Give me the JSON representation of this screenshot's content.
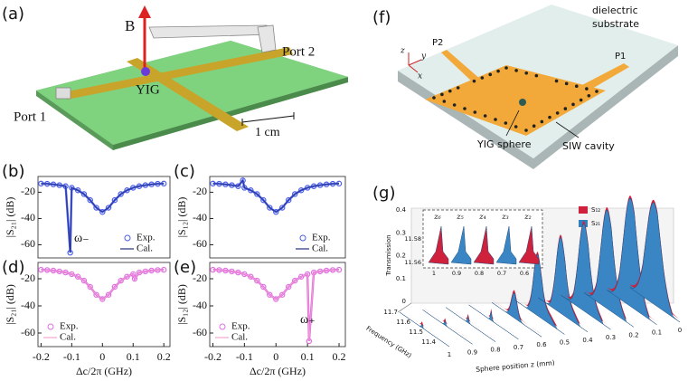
{
  "panel_labels": [
    "(a)",
    "(b)",
    "(c)",
    "(d)",
    "(e)",
    "(f)",
    "(g)"
  ],
  "a": {
    "field": "B",
    "port2": "Port 2",
    "yig": "YIG",
    "port1": "Port 1",
    "scale": "1 cm"
  },
  "f": {
    "substrate": [
      "dielectric",
      "substrate"
    ],
    "p2": "P2",
    "p1": "P1",
    "axes": [
      "z",
      "y",
      "x"
    ],
    "sphere": "YIG sphere",
    "cavity": "SIW cavity"
  },
  "g": {
    "yticks": [
      "0.4",
      "0.3",
      "0.2",
      "0.1",
      "0"
    ],
    "ylabel": "Transmission",
    "freq_label": "Frequency (GHz)",
    "freq_ticks": [
      "11.7",
      "11.6",
      "11.5",
      "11.4"
    ],
    "zlabel": "Sphere position z (mm)",
    "zticks": [
      "1",
      "0.9",
      "0.8",
      "0.7",
      "0.6",
      "0.5",
      "0.4",
      "0.3",
      "0.2",
      "0.1",
      "0"
    ],
    "legend": [
      "S₁₂",
      "S₂₁"
    ],
    "inset": {
      "yticks": [
        "11.58",
        "11.56"
      ],
      "xticks": [
        "1",
        "0.9",
        "0.8",
        "0.7",
        "0.6"
      ],
      "labels": [
        "z₆",
        "z₅",
        "z₄",
        "z₃",
        "z₂"
      ]
    }
  },
  "chart_data": [
    {
      "type": "line",
      "ylabel": "|S₂₁| (dB)",
      "annotation": "ω₋",
      "legend": "lower right",
      "x": [
        -0.2,
        -0.18,
        -0.16,
        -0.14,
        -0.12,
        -0.105,
        -0.1,
        -0.08,
        -0.06,
        -0.04,
        -0.02,
        0,
        0.02,
        0.04,
        0.06,
        0.08,
        0.1,
        0.12,
        0.14,
        0.16,
        0.18,
        0.2
      ],
      "series": [
        {
          "name": "Exp.",
          "color": "#4a5ee8",
          "values": [
            -13.4,
            -13.6,
            -14,
            -14.6,
            -15.4,
            -66,
            -16.6,
            -18.5,
            -21.4,
            -26,
            -31.8,
            -35,
            -31.8,
            -26,
            -21.4,
            -18.5,
            -16.6,
            -15.4,
            -14.6,
            -14,
            -13.6,
            -13.4
          ]
        },
        {
          "name": "Cal.",
          "color": "#25307a",
          "values": [
            -13.4,
            -13.6,
            -14,
            -14.6,
            -15.4,
            -66,
            -16.6,
            -18.5,
            -21.4,
            -26,
            -31.8,
            -35,
            -31.8,
            -26,
            -21.4,
            -18.5,
            -16.6,
            -15.4,
            -14.6,
            -14,
            -13.6,
            -13.4
          ]
        }
      ],
      "xlim": [
        -0.21,
        0.22
      ],
      "ylim": [
        -70,
        -8
      ],
      "yticks": [
        -20,
        -40,
        -60
      ]
    },
    {
      "type": "line",
      "ylabel": "|S₁₂| (dB)",
      "legend": "lower right",
      "x": [
        -0.2,
        -0.18,
        -0.16,
        -0.14,
        -0.12,
        -0.105,
        -0.1,
        -0.08,
        -0.06,
        -0.04,
        -0.02,
        0,
        0.02,
        0.04,
        0.06,
        0.08,
        0.1,
        0.12,
        0.14,
        0.16,
        0.18,
        0.2
      ],
      "series": [
        {
          "name": "Exp.",
          "color": "#4a5ee8",
          "values": [
            -13.4,
            -13.6,
            -14,
            -14.6,
            -15.4,
            -11,
            -16.6,
            -18.5,
            -21.4,
            -26,
            -31.8,
            -35,
            -31.8,
            -26,
            -21.4,
            -18.5,
            -16.6,
            -15.4,
            -14.6,
            -14,
            -13.6,
            -13.4
          ]
        },
        {
          "name": "Cal.",
          "color": "#25307a",
          "values": [
            -13.4,
            -13.6,
            -14,
            -14.6,
            -15.4,
            -11,
            -16.6,
            -18.5,
            -21.4,
            -26,
            -31.8,
            -35,
            -31.8,
            -26,
            -21.4,
            -18.5,
            -16.6,
            -15.4,
            -14.6,
            -14,
            -13.6,
            -13.4
          ]
        }
      ],
      "xlim": [
        -0.21,
        0.22
      ],
      "ylim": [
        -70,
        -8
      ],
      "yticks": [
        -20,
        -40,
        -60
      ]
    },
    {
      "type": "line",
      "ylabel": "|S₂₁| (dB)",
      "xlabel": "Δc/2π (GHz)",
      "legend": "lower left",
      "x": [
        -0.2,
        -0.18,
        -0.16,
        -0.14,
        -0.12,
        -0.1,
        -0.08,
        -0.06,
        -0.04,
        -0.02,
        0,
        0.02,
        0.04,
        0.06,
        0.08,
        0.1,
        0.105,
        0.12,
        0.14,
        0.16,
        0.18,
        0.2
      ],
      "series": [
        {
          "name": "Exp.",
          "color": "#e070e0",
          "values": [
            -13.4,
            -13.6,
            -14,
            -14.6,
            -15.4,
            -16.6,
            -18.5,
            -21.4,
            -26,
            -31.8,
            -35,
            -31.8,
            -26,
            -21.4,
            -18.5,
            -16.6,
            -20,
            -15.4,
            -14.6,
            -14,
            -13.6,
            -13.4
          ]
        },
        {
          "name": "Cal.",
          "color": "#f3a6cf",
          "values": [
            -13.4,
            -13.6,
            -14,
            -14.6,
            -15.4,
            -16.6,
            -18.5,
            -21.4,
            -26,
            -31.8,
            -35,
            -31.8,
            -26,
            -21.4,
            -18.5,
            -16.6,
            -20,
            -15.4,
            -14.6,
            -14,
            -13.6,
            -13.4
          ]
        }
      ],
      "xlim": [
        -0.21,
        0.22
      ],
      "ylim": [
        -70,
        -8
      ],
      "yticks": [
        -20,
        -40,
        -60
      ],
      "xticks": [
        -0.2,
        -0.1,
        0.0,
        0.1,
        0.2
      ]
    },
    {
      "type": "line",
      "ylabel": "|S₁₂| (dB)",
      "xlabel": "Δc/2π (GHz)",
      "annotation": "ω₊",
      "legend": "lower left",
      "x": [
        -0.2,
        -0.18,
        -0.16,
        -0.14,
        -0.12,
        -0.1,
        -0.08,
        -0.06,
        -0.04,
        -0.02,
        0,
        0.02,
        0.04,
        0.06,
        0.08,
        0.1,
        0.105,
        0.12,
        0.14,
        0.16,
        0.18,
        0.2
      ],
      "series": [
        {
          "name": "Exp.",
          "color": "#e070e0",
          "values": [
            -13.4,
            -13.6,
            -14,
            -14.6,
            -15.4,
            -16.6,
            -18.5,
            -21.4,
            -26,
            -31.8,
            -35,
            -31.8,
            -26,
            -21.4,
            -18.5,
            -16.6,
            -66,
            -15.4,
            -14.6,
            -14,
            -13.6,
            -13.4
          ]
        },
        {
          "name": "Cal.",
          "color": "#f3a6cf",
          "values": [
            -13.4,
            -13.6,
            -14,
            -14.6,
            -15.4,
            -16.6,
            -18.5,
            -21.4,
            -26,
            -31.8,
            -35,
            -31.8,
            -26,
            -21.4,
            -18.5,
            -16.6,
            -66,
            -15.4,
            -14.6,
            -14,
            -13.6,
            -13.4
          ]
        }
      ],
      "xlim": [
        -0.21,
        0.22
      ],
      "ylim": [
        -70,
        -8
      ],
      "yticks": [
        -20,
        -40,
        -60
      ],
      "xticks": [
        -0.2,
        -0.1,
        0.0,
        0.1,
        0.2
      ]
    }
  ]
}
